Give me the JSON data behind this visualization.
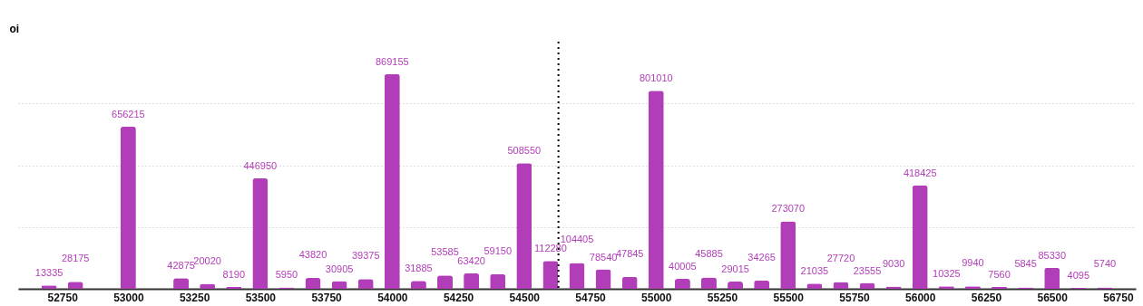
{
  "chart_data": {
    "type": "bar",
    "ylabel": "oi",
    "x": [
      52700,
      52800,
      53000,
      53200,
      53300,
      53400,
      53500,
      53600,
      53700,
      53800,
      53900,
      54000,
      54100,
      54200,
      54300,
      54400,
      54500,
      54600,
      54700,
      54800,
      54900,
      55000,
      55100,
      55200,
      55300,
      55400,
      55500,
      55600,
      55700,
      55800,
      55900,
      56000,
      56100,
      56200,
      56300,
      56400,
      56500,
      56600,
      56700
    ],
    "values": [
      13335,
      28175,
      656215,
      42875,
      20020,
      8190,
      446950,
      5950,
      43820,
      30905,
      39375,
      869155,
      31885,
      53585,
      63420,
      59150,
      508550,
      112280,
      104405,
      78540,
      47845,
      801010,
      40005,
      45885,
      29015,
      34265,
      273070,
      21035,
      27720,
      23555,
      9030,
      418425,
      10325,
      9940,
      7560,
      5845,
      85330,
      4095,
      5740
    ],
    "color": "#b23db9",
    "xlim": [
      52600,
      56800
    ],
    "xticks": [
      52750,
      53000,
      53250,
      53500,
      53750,
      54000,
      54250,
      54500,
      54750,
      55000,
      55250,
      55500,
      55750,
      56000,
      56250,
      56500,
      56750
    ],
    "ylim": [
      0,
      1000000
    ],
    "yticks": [
      {
        "value": 0,
        "label": null
      },
      {
        "value": 250000,
        "label": null
      },
      {
        "value": 500000,
        "label": null
      },
      {
        "value": 750000,
        "label": null
      }
    ],
    "tick_labels": "x",
    "grid": "y",
    "data_labels": true,
    "ref_lines": [
      {
        "axis": "x",
        "value": 54630,
        "color": "#000000",
        "line_style": "dotted"
      }
    ]
  }
}
